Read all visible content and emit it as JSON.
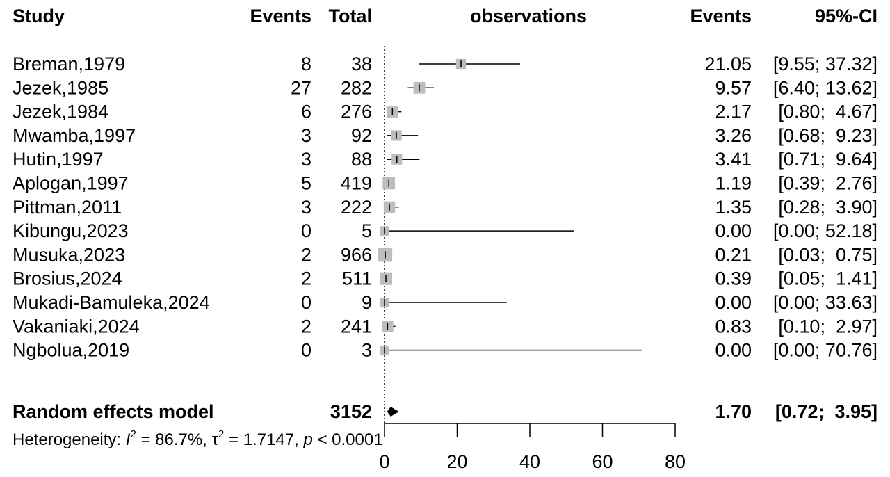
{
  "chart_data": {
    "type": "forest",
    "headers": {
      "study": "Study",
      "events": "Events",
      "total": "Total",
      "plot": "observations",
      "est": "Events",
      "ci": "95%-CI"
    },
    "studies": [
      {
        "name": "Breman,1979",
        "events": "8",
        "total": "38",
        "est": 21.05,
        "lo": 9.55,
        "hi": 37.32,
        "est_text": "21.05",
        "ci_text": "[9.55; 37.32]"
      },
      {
        "name": "Jezek,1985",
        "events": "27",
        "total": "282",
        "est": 9.57,
        "lo": 6.4,
        "hi": 13.62,
        "est_text": "9.57",
        "ci_text": "[6.40; 13.62]"
      },
      {
        "name": "Jezek,1984",
        "events": "6",
        "total": "276",
        "est": 2.17,
        "lo": 0.8,
        "hi": 4.67,
        "est_text": "2.17",
        "ci_text": "[0.80;  4.67]"
      },
      {
        "name": "Mwamba,1997",
        "events": "3",
        "total": "92",
        "est": 3.26,
        "lo": 0.68,
        "hi": 9.23,
        "est_text": "3.26",
        "ci_text": "[0.68;  9.23]"
      },
      {
        "name": "Hutin,1997",
        "events": "3",
        "total": "88",
        "est": 3.41,
        "lo": 0.71,
        "hi": 9.64,
        "est_text": "3.41",
        "ci_text": "[0.71;  9.64]"
      },
      {
        "name": "Aplogan,1997",
        "events": "5",
        "total": "419",
        "est": 1.19,
        "lo": 0.39,
        "hi": 2.76,
        "est_text": "1.19",
        "ci_text": "[0.39;  2.76]"
      },
      {
        "name": "Pittman,2011",
        "events": "3",
        "total": "222",
        "est": 1.35,
        "lo": 0.28,
        "hi": 3.9,
        "est_text": "1.35",
        "ci_text": "[0.28;  3.90]"
      },
      {
        "name": "Kibungu,2023",
        "events": "0",
        "total": "5",
        "est": 0.0,
        "lo": 0.0,
        "hi": 52.18,
        "est_text": "0.00",
        "ci_text": "[0.00; 52.18]"
      },
      {
        "name": "Musuka,2023",
        "events": "2",
        "total": "966",
        "est": 0.21,
        "lo": 0.03,
        "hi": 0.75,
        "est_text": "0.21",
        "ci_text": "[0.03;  0.75]"
      },
      {
        "name": "Brosius,2024",
        "events": "2",
        "total": "511",
        "est": 0.39,
        "lo": 0.05,
        "hi": 1.41,
        "est_text": "0.39",
        "ci_text": "[0.05;  1.41]"
      },
      {
        "name": "Mukadi-Bamuleka,2024",
        "events": "0",
        "total": "9",
        "est": 0.0,
        "lo": 0.0,
        "hi": 33.63,
        "est_text": "0.00",
        "ci_text": "[0.00; 33.63]"
      },
      {
        "name": "Vakaniaki,2024",
        "events": "2",
        "total": "241",
        "est": 0.83,
        "lo": 0.1,
        "hi": 2.97,
        "est_text": "0.83",
        "ci_text": "[0.10;  2.97]"
      },
      {
        "name": "Ngbolua,2019",
        "events": "0",
        "total": "3",
        "est": 0.0,
        "lo": 0.0,
        "hi": 70.76,
        "est_text": "0.00",
        "ci_text": "[0.00; 70.76]"
      }
    ],
    "pooled": {
      "name": "Random effects model",
      "total": "3152",
      "est": 1.7,
      "lo": 0.72,
      "hi": 3.95,
      "est_text": "1.70",
      "ci_text": "[0.72;  3.95]"
    },
    "heterogeneity": {
      "prefix": "Heterogeneity: ",
      "i2_sym": "I",
      "i2_sup": "2",
      "i2_val": " = 86.7%, ",
      "tau_sym": "τ",
      "tau_sup": "2",
      "tau_val": " = 1.7147, ",
      "p_sym": "p",
      "p_val": " < 0.0001"
    },
    "xaxis": {
      "ticks": [
        0,
        20,
        40,
        60,
        80
      ],
      "tick_labels": [
        "0",
        "20",
        "40",
        "60",
        "80"
      ],
      "range": [
        0,
        80
      ]
    },
    "colors": {
      "square": "#bdbdbd",
      "line": "#000000",
      "reference": "#000000"
    }
  }
}
